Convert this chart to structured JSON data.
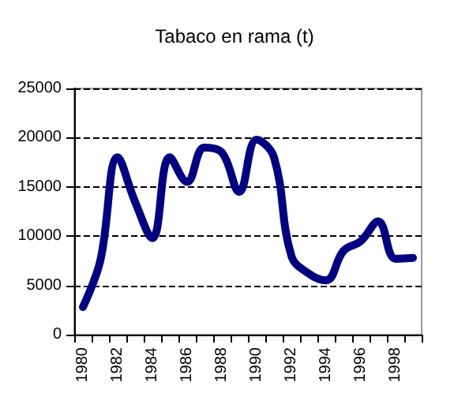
{
  "chart_data": {
    "type": "line",
    "title": "Tabaco en rama (t)",
    "categories": [
      "1980",
      null,
      "1982",
      null,
      "1984",
      null,
      "1986",
      null,
      "1988",
      null,
      "1990",
      null,
      "1992",
      null,
      "1994",
      null,
      "1996",
      null,
      "1998",
      null
    ],
    "series": [
      {
        "color": "#000080",
        "values": [
          2800,
          7500,
          18000,
          13500,
          9800,
          18000,
          15500,
          19000,
          18500,
          14500,
          19800,
          18000,
          8000,
          6200,
          5500,
          8500,
          9500,
          11500,
          7700,
          7800
        ]
      }
    ],
    "ylim": [
      0,
      25000
    ],
    "yticks": [
      0,
      5000,
      10000,
      15000,
      20000,
      25000
    ],
    "grid": "y",
    "marker": "none",
    "line_style": "solid"
  }
}
